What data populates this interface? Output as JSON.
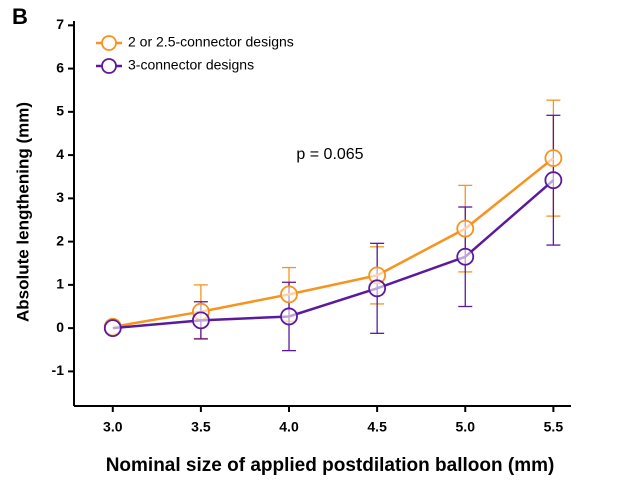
{
  "chart_data": {
    "type": "line",
    "panel_label": "B",
    "annotation": "p = 0.065",
    "x_label": "Nominal size of applied postdilation balloon (mm)",
    "y_label": "Absolute lengthening (mm)",
    "x": [
      3.0,
      3.5,
      4.0,
      4.5,
      5.0,
      5.5
    ],
    "xlim": [
      2.78,
      5.6
    ],
    "xticks": [
      {
        "value": 3,
        "label": "3.0"
      },
      {
        "value": 3.5,
        "label": "3.5"
      },
      {
        "value": 4,
        "label": "4.0"
      },
      {
        "value": 4.5,
        "label": "4.5"
      },
      {
        "value": 5,
        "label": "5.0"
      },
      {
        "value": 5.5,
        "label": "5.5"
      }
    ],
    "ylim": [
      -1.8,
      7.1
    ],
    "yticks": [
      -1,
      0,
      1,
      2,
      3,
      4,
      5,
      6,
      7
    ],
    "legend": "upper left",
    "series": [
      {
        "name": "2 or 2.5-connector designs",
        "color": "#f7931e",
        "values": [
          0.03,
          0.38,
          0.78,
          1.22,
          2.3,
          3.93
        ],
        "errors": [
          0,
          0.62,
          0.62,
          0.66,
          1.0,
          1.34
        ]
      },
      {
        "name": "3-connector designs",
        "color": "#5b1a9e",
        "values": [
          0,
          0.18,
          0.27,
          0.92,
          1.65,
          3.42
        ],
        "errors": [
          0,
          0.43,
          0.79,
          1.04,
          1.15,
          1.5
        ]
      }
    ]
  }
}
